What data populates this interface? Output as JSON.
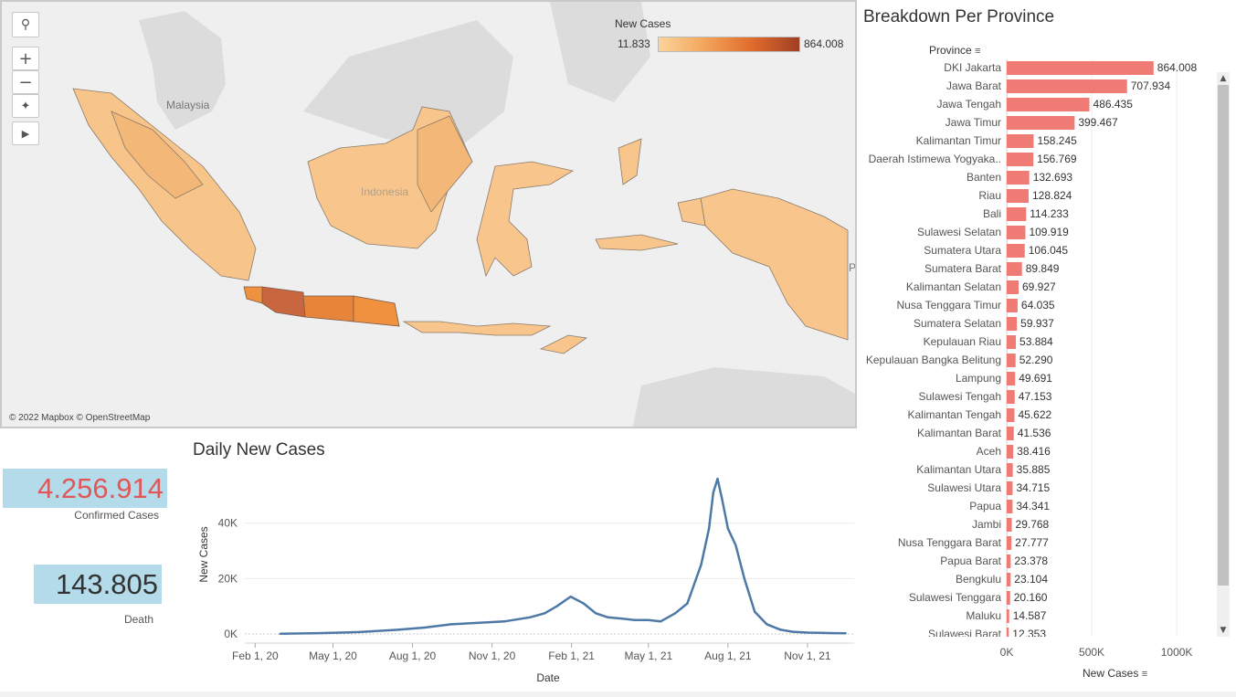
{
  "map": {
    "legend_title": "New Cases",
    "legend_min": "11.833",
    "legend_max": "864.008",
    "attribution": "© 2022 Mapbox © OpenStreetMap",
    "labels": {
      "malaysia": "Malaysia",
      "indonesia": "Indonesia",
      "edge": "P"
    },
    "controls": {
      "zoom_in": "+",
      "zoom_out": "−",
      "play": "▶"
    },
    "colors": {
      "low": "#f9c98a",
      "mid": "#f0913f",
      "high": "#c8673f",
      "land": "#dcdcdc",
      "sea": "#efefef"
    }
  },
  "kpis": {
    "confirmed_value": "4.256.914",
    "confirmed_label": "Confirmed Cases",
    "death_value": "143.805",
    "death_label": "Death"
  },
  "daily": {
    "title": "Daily New Cases",
    "x_label": "Date",
    "y_label": "New Cases"
  },
  "breakdown": {
    "title": "Breakdown Per Province",
    "column_header": "Province",
    "axis_label": "New Cases",
    "scroll_up": "▲",
    "scroll_down": "▼"
  },
  "chart_data": [
    {
      "type": "bar",
      "title": "Breakdown Per Province",
      "xlabel": "New Cases",
      "ylabel": "Province",
      "xlim": [
        0,
        1150000
      ],
      "ticks": [
        "0K",
        "500K",
        "1000K"
      ],
      "tick_values": [
        0,
        500000,
        1000000
      ],
      "bar_color": "#f07b75",
      "categories": [
        "DKI Jakarta",
        "Jawa Barat",
        "Jawa Tengah",
        "Jawa Timur",
        "Kalimantan Timur",
        "Daerah Istimewa Yogyaka..",
        "Banten",
        "Riau",
        "Bali",
        "Sulawesi Selatan",
        "Sumatera Utara",
        "Sumatera Barat",
        "Kalimantan Selatan",
        "Nusa Tenggara Timur",
        "Sumatera Selatan",
        "Kepulauan Riau",
        "Kepulauan Bangka Belitung",
        "Lampung",
        "Sulawesi Tengah",
        "Kalimantan Tengah",
        "Kalimantan Barat",
        "Aceh",
        "Kalimantan Utara",
        "Sulawesi Utara",
        "Papua",
        "Jambi",
        "Nusa Tenggara Barat",
        "Papua Barat",
        "Bengkulu",
        "Sulawesi Tenggara",
        "Maluku",
        "Sulawesi Barat"
      ],
      "labels": [
        "864.008",
        "707.934",
        "486.435",
        "399.467",
        "158.245",
        "156.769",
        "132.693",
        "128.824",
        "114.233",
        "109.919",
        "106.045",
        "89.849",
        "69.927",
        "64.035",
        "59.937",
        "53.884",
        "52.290",
        "49.691",
        "47.153",
        "45.622",
        "41.536",
        "38.416",
        "35.885",
        "34.715",
        "34.341",
        "29.768",
        "27.777",
        "23.378",
        "23.104",
        "20.160",
        "14.587",
        "12.353"
      ],
      "values": [
        864008,
        707934,
        486435,
        399467,
        158245,
        156769,
        132693,
        128824,
        114233,
        109919,
        106045,
        89849,
        69927,
        64035,
        59937,
        53884,
        52290,
        49691,
        47153,
        45622,
        41536,
        38416,
        35885,
        34715,
        34341,
        29768,
        27777,
        23378,
        23104,
        20160,
        14587,
        12353
      ]
    },
    {
      "type": "line",
      "title": "Daily New Cases",
      "xlabel": "Date",
      "ylabel": "New Cases",
      "x_ticks": [
        "Feb 1, 20",
        "May 1, 20",
        "Aug 1, 20",
        "Nov 1, 20",
        "Feb 1, 21",
        "May 1, 21",
        "Aug 1, 21",
        "Nov 1, 21"
      ],
      "y_ticks": [
        "0K",
        "20K",
        "40K"
      ],
      "y_tick_values": [
        0,
        20000,
        40000
      ],
      "ylim": [
        0,
        60000
      ],
      "line_color": "#4e79a7",
      "x": [
        "2020-03-01",
        "2020-04-15",
        "2020-06-01",
        "2020-07-15",
        "2020-08-15",
        "2020-09-15",
        "2020-10-15",
        "2020-11-15",
        "2020-12-15",
        "2021-01-01",
        "2021-01-15",
        "2021-01-31",
        "2021-02-15",
        "2021-03-01",
        "2021-03-15",
        "2021-04-01",
        "2021-04-15",
        "2021-05-01",
        "2021-05-15",
        "2021-06-01",
        "2021-06-15",
        "2021-07-01",
        "2021-07-10",
        "2021-07-15",
        "2021-07-20",
        "2021-07-25",
        "2021-08-01",
        "2021-08-10",
        "2021-08-20",
        "2021-09-01",
        "2021-09-15",
        "2021-10-01",
        "2021-10-15",
        "2021-11-01",
        "2021-11-15",
        "2021-12-01",
        "2021-12-15"
      ],
      "values": [
        50,
        300,
        700,
        1500,
        2300,
        3500,
        4000,
        4500,
        6000,
        7500,
        10000,
        13500,
        11000,
        7500,
        6000,
        5500,
        5000,
        5000,
        4500,
        7500,
        11000,
        25000,
        38000,
        51000,
        56000,
        49000,
        38000,
        32000,
        20000,
        8000,
        3500,
        1500,
        800,
        500,
        400,
        300,
        250
      ]
    }
  ]
}
